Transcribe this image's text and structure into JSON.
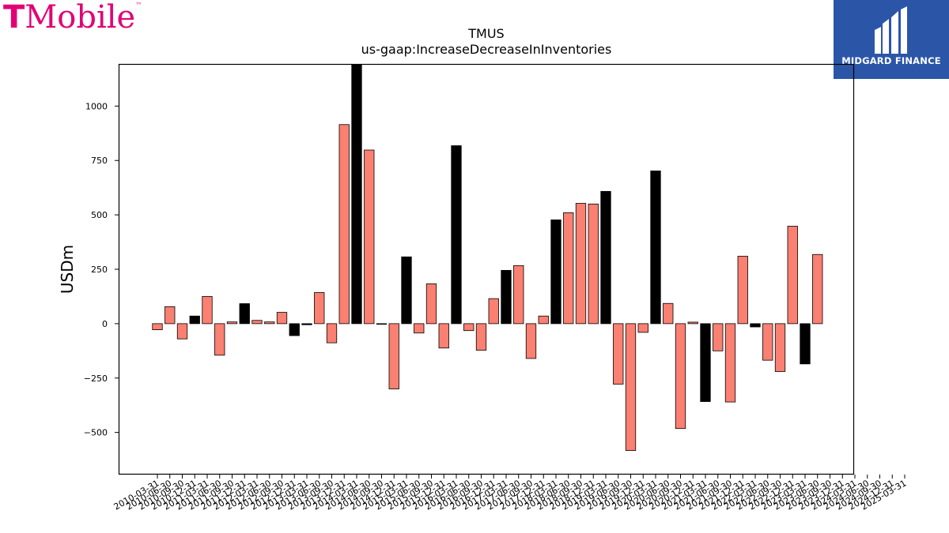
{
  "branding": {
    "left_logo_t": "T",
    "left_logo_word": "Mobile",
    "left_logo_tm": "™",
    "left_logo_color": "#e20074",
    "right_logo_text": "MIDGARD FINANCE",
    "right_logo_bg": "#2b56a8",
    "right_logo_icon": "midgard-m-icon"
  },
  "chart_data": {
    "type": "bar",
    "title": "TMUS",
    "subtitle": "us-gaap:IncreaseDecreaseInInventories",
    "ylabel": "USDm",
    "xlabel": "",
    "ylim": [
      -690,
      1190
    ],
    "yticks": [
      -500,
      -250,
      0,
      250,
      500,
      750,
      1000
    ],
    "grid": false,
    "colors": {
      "salmon": "#fa8072",
      "black": "#000000"
    },
    "bars": [
      {
        "x": "2010-03-31",
        "y": -28,
        "c": "salmon"
      },
      {
        "x": "2010-06-30",
        "y": 78,
        "c": "salmon"
      },
      {
        "x": "2010-09-30",
        "y": -70,
        "c": "salmon"
      },
      {
        "x": "2010-12-31",
        "y": 35,
        "c": "black"
      },
      {
        "x": "2011-03-31",
        "y": 125,
        "c": "salmon"
      },
      {
        "x": "2011-06-30",
        "y": -145,
        "c": "salmon"
      },
      {
        "x": "2011-09-30",
        "y": 8,
        "c": "salmon"
      },
      {
        "x": "2011-12-31",
        "y": 92,
        "c": "black"
      },
      {
        "x": "2012-03-31",
        "y": 15,
        "c": "salmon"
      },
      {
        "x": "2012-06-30",
        "y": 8,
        "c": "salmon"
      },
      {
        "x": "2012-09-30",
        "y": 52,
        "c": "salmon"
      },
      {
        "x": "2012-12-31",
        "y": -55,
        "c": "black"
      },
      {
        "x": "2013-03-31",
        "y": -5,
        "c": "black"
      },
      {
        "x": "2013-06-30",
        "y": 143,
        "c": "salmon"
      },
      {
        "x": "2013-09-30",
        "y": -88,
        "c": "salmon"
      },
      {
        "x": "2013-12-31",
        "y": 915,
        "c": "salmon"
      },
      {
        "x": "2014-03-31",
        "y": 1190,
        "c": "black"
      },
      {
        "x": "2014-06-30",
        "y": 798,
        "c": "salmon"
      },
      {
        "x": "2014-09-30",
        "y": -3,
        "c": "salmon"
      },
      {
        "x": "2014-12-31",
        "y": -300,
        "c": "salmon"
      },
      {
        "x": "2015-03-31",
        "y": 307,
        "c": "black"
      },
      {
        "x": "2015-06-30",
        "y": -43,
        "c": "salmon"
      },
      {
        "x": "2015-09-30",
        "y": 183,
        "c": "salmon"
      },
      {
        "x": "2015-12-31",
        "y": -112,
        "c": "salmon"
      },
      {
        "x": "2016-03-31",
        "y": 818,
        "c": "black"
      },
      {
        "x": "2016-06-30",
        "y": -32,
        "c": "salmon"
      },
      {
        "x": "2016-09-30",
        "y": -122,
        "c": "salmon"
      },
      {
        "x": "2016-12-31",
        "y": 115,
        "c": "salmon"
      },
      {
        "x": "2017-03-31",
        "y": 245,
        "c": "black"
      },
      {
        "x": "2017-06-30",
        "y": 267,
        "c": "salmon"
      },
      {
        "x": "2017-09-30",
        "y": -160,
        "c": "salmon"
      },
      {
        "x": "2017-12-31",
        "y": 35,
        "c": "salmon"
      },
      {
        "x": "2018-03-31",
        "y": 477,
        "c": "black"
      },
      {
        "x": "2018-06-30",
        "y": 510,
        "c": "salmon"
      },
      {
        "x": "2018-09-30",
        "y": 553,
        "c": "salmon"
      },
      {
        "x": "2018-12-31",
        "y": 550,
        "c": "salmon"
      },
      {
        "x": "2019-03-31",
        "y": 608,
        "c": "black"
      },
      {
        "x": "2019-06-30",
        "y": -278,
        "c": "salmon"
      },
      {
        "x": "2019-09-30",
        "y": -583,
        "c": "salmon"
      },
      {
        "x": "2019-12-31",
        "y": -40,
        "c": "salmon"
      },
      {
        "x": "2020-03-31",
        "y": 702,
        "c": "black"
      },
      {
        "x": "2020-06-30",
        "y": 93,
        "c": "salmon"
      },
      {
        "x": "2020-09-30",
        "y": -482,
        "c": "salmon"
      },
      {
        "x": "2020-12-31",
        "y": 7,
        "c": "salmon"
      },
      {
        "x": "2021-03-31",
        "y": -358,
        "c": "black"
      },
      {
        "x": "2021-06-30",
        "y": -125,
        "c": "salmon"
      },
      {
        "x": "2021-09-30",
        "y": -360,
        "c": "salmon"
      },
      {
        "x": "2021-12-31",
        "y": 310,
        "c": "salmon"
      },
      {
        "x": "2022-03-31",
        "y": -15,
        "c": "black"
      },
      {
        "x": "2022-06-30",
        "y": -168,
        "c": "salmon"
      },
      {
        "x": "2022-09-30",
        "y": -220,
        "c": "salmon"
      },
      {
        "x": "2022-12-31",
        "y": 448,
        "c": "salmon"
      },
      {
        "x": "2023-03-31",
        "y": -185,
        "c": "black"
      },
      {
        "x": "2023-06-30",
        "y": 318,
        "c": "salmon"
      }
    ],
    "xticks": [
      "2010-03-31",
      "2010-06-30",
      "2010-09-30",
      "2010-12-31",
      "2011-03-31",
      "2011-06-30",
      "2011-09-30",
      "2011-12-31",
      "2012-03-31",
      "2012-06-30",
      "2012-09-30",
      "2012-12-31",
      "2013-03-31",
      "2013-06-30",
      "2013-09-30",
      "2013-12-31",
      "2014-03-31",
      "2014-06-30",
      "2014-09-30",
      "2014-12-31",
      "2015-03-31",
      "2015-06-30",
      "2015-09-30",
      "2015-12-31",
      "2016-03-31",
      "2016-06-30",
      "2016-09-30",
      "2016-12-31",
      "2017-03-31",
      "2017-06-30",
      "2017-09-30",
      "2017-12-31",
      "2018-03-31",
      "2018-06-30",
      "2018-09-30",
      "2018-12-31",
      "2019-03-31",
      "2019-06-30",
      "2019-09-30",
      "2019-12-31",
      "2020-03-31",
      "2020-06-30",
      "2020-09-30",
      "2020-12-31",
      "2021-03-31",
      "2021-06-30",
      "2021-09-30",
      "2021-12-31",
      "2022-03-31",
      "2022-06-30",
      "2022-09-30",
      "2022-12-31",
      "2023-03-31",
      "2023-06-30",
      "2023-09-30",
      "2023-12-31",
      "2024-03-31",
      "2024-06-30",
      "2024-09-30",
      "2024-12-31",
      "2025-03-31"
    ]
  }
}
